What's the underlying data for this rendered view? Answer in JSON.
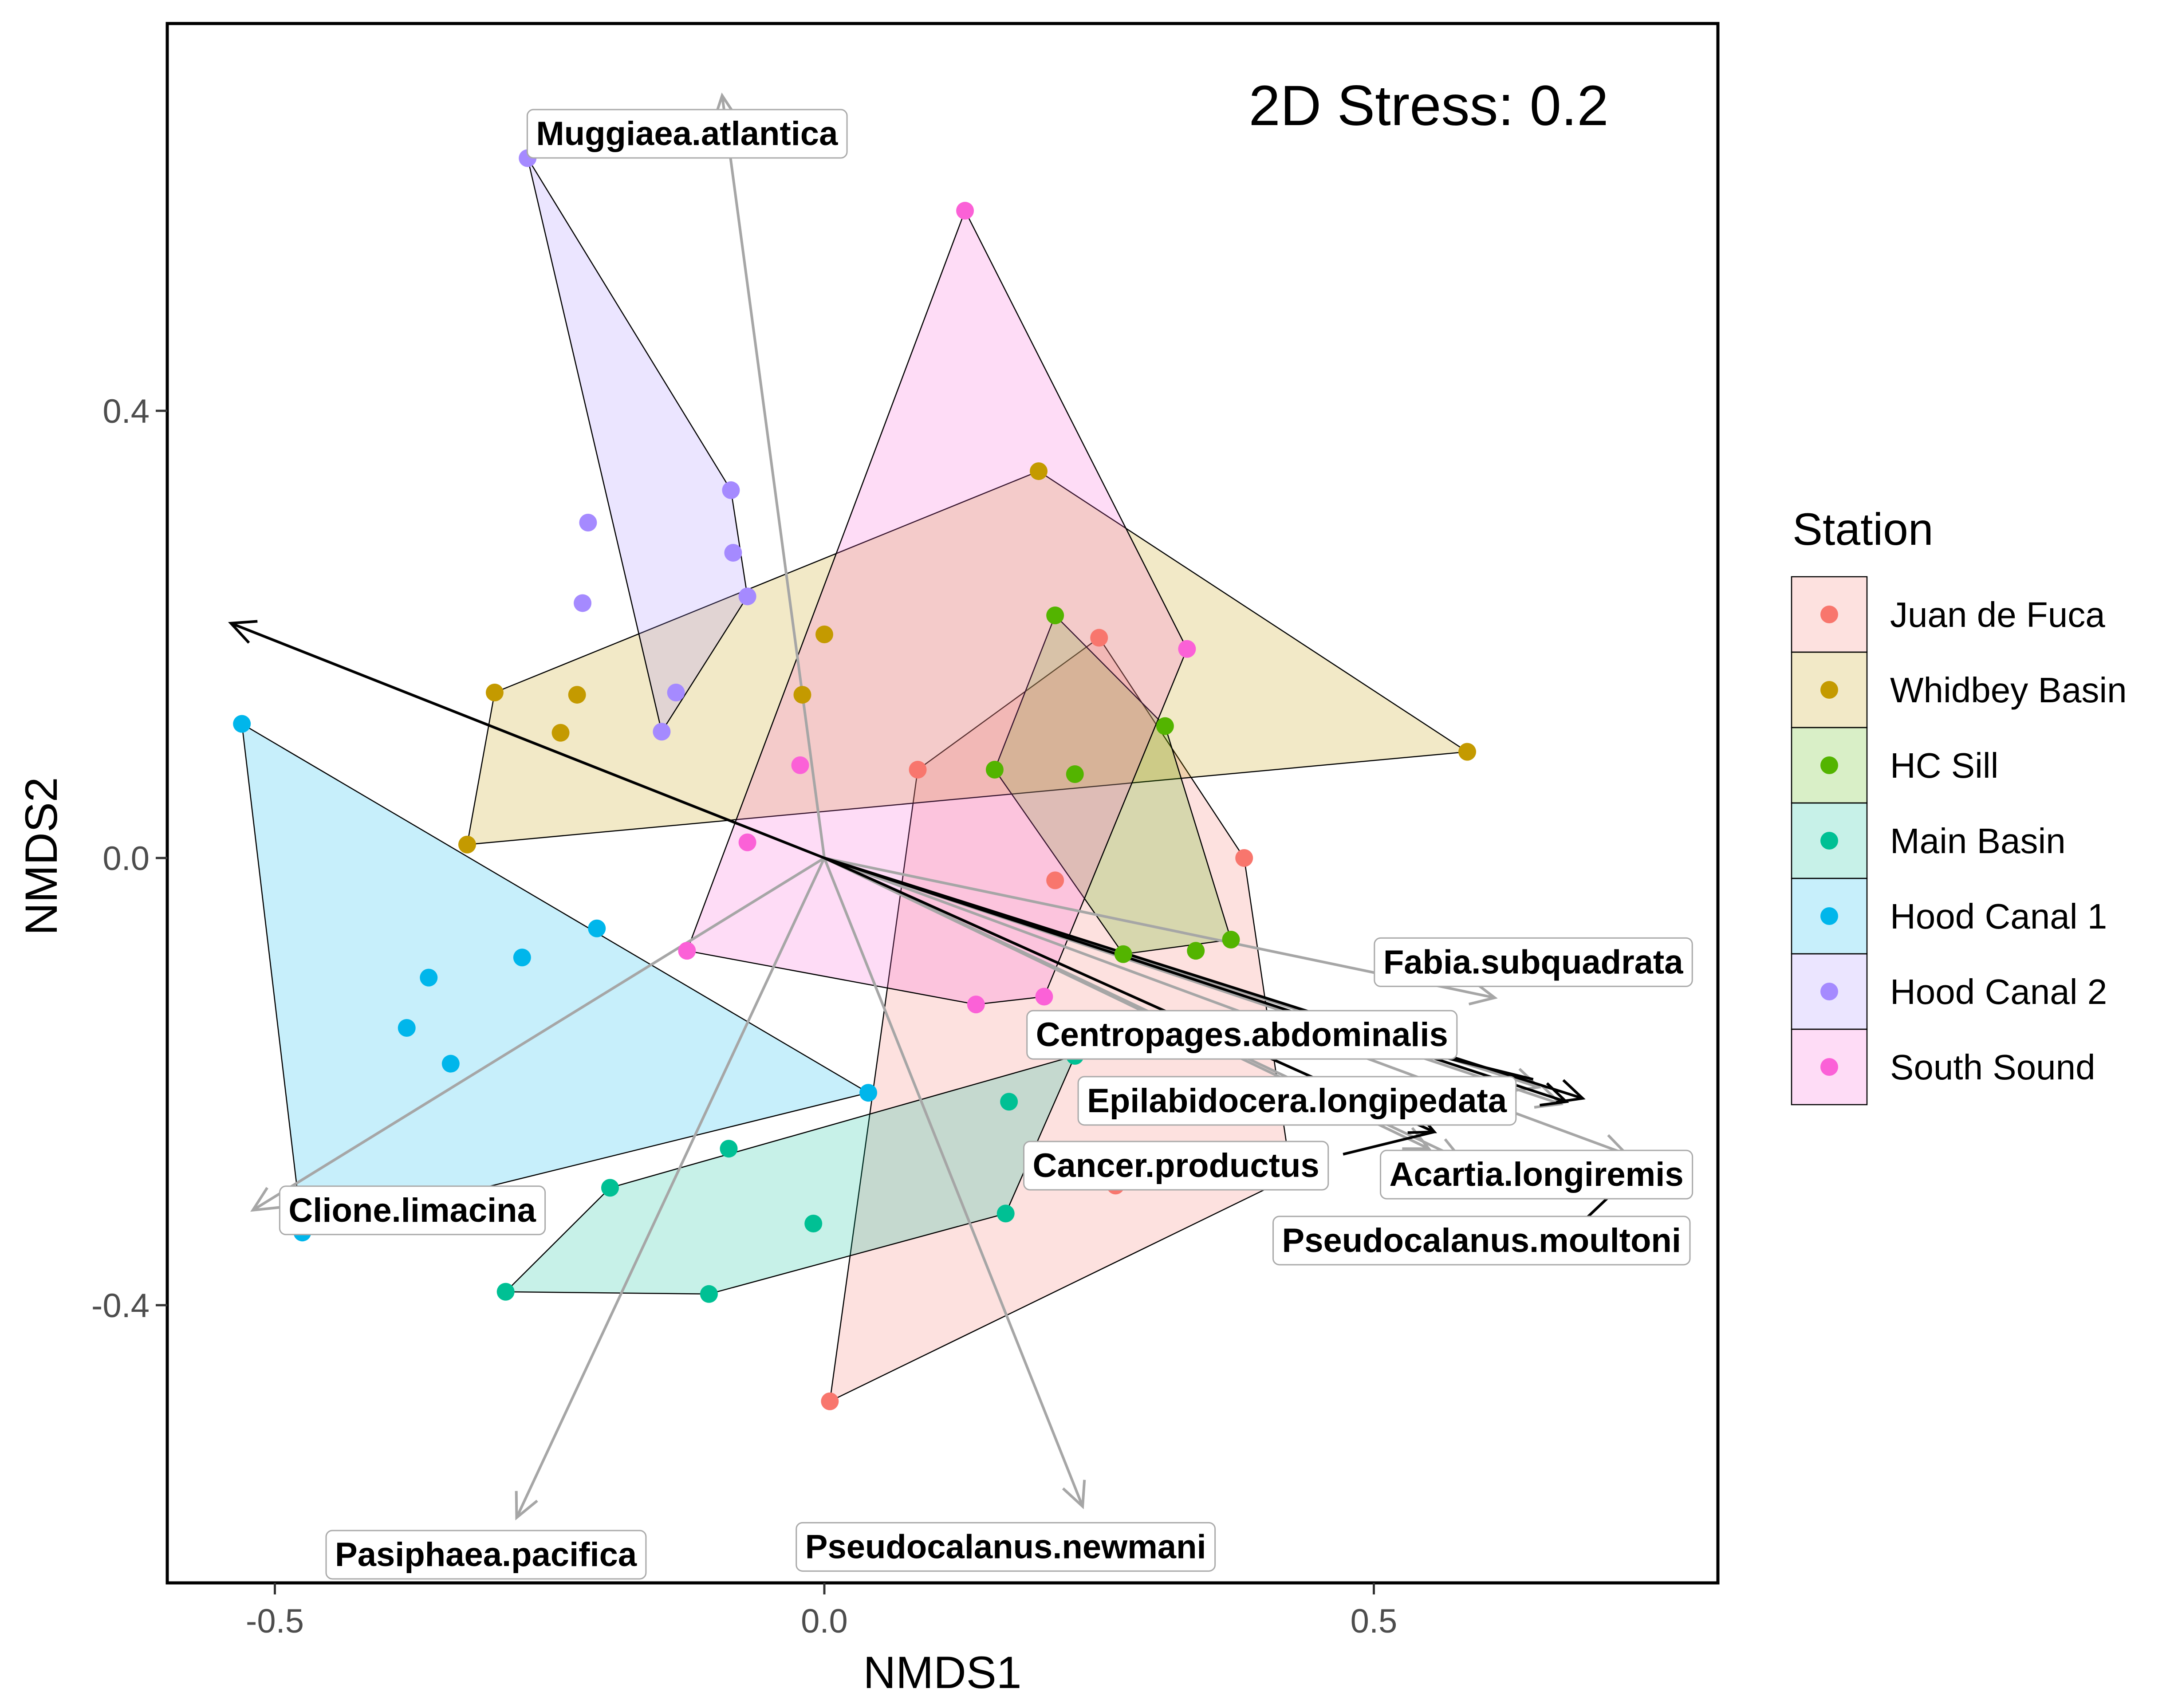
{
  "chart_data": {
    "type": "scatter",
    "title": "",
    "annotation": "2D Stress: 0.2",
    "xlabel": "NMDS1",
    "ylabel": "NMDS2",
    "xlim": [
      -0.6,
      0.81
    ],
    "ylim": [
      -0.65,
      0.74
    ],
    "xticks": [
      -0.5,
      0.0,
      0.5
    ],
    "yticks": [
      -0.4,
      0.0,
      0.4
    ],
    "xtick_labels": [
      "-0.5",
      "0.0",
      "0.5"
    ],
    "ytick_labels": [
      "-0.4",
      "0.0",
      "0.4"
    ],
    "grid": false,
    "legend": {
      "title": "Station",
      "position": "right"
    },
    "series": [
      {
        "name": "Juan de Fuca",
        "color": "#F8766D",
        "points": [
          [
            0.25,
            0.197
          ],
          [
            0.085,
            0.079
          ],
          [
            0.382,
            0.0
          ],
          [
            0.21,
            -0.02
          ],
          [
            0.265,
            -0.293
          ],
          [
            0.425,
            -0.285
          ],
          [
            0.005,
            -0.486
          ]
        ],
        "hull": [
          [
            0.25,
            0.197
          ],
          [
            0.382,
            0.0
          ],
          [
            0.425,
            -0.285
          ],
          [
            0.005,
            -0.486
          ],
          [
            0.085,
            0.079
          ]
        ]
      },
      {
        "name": "Whidbey Basin",
        "color": "#C49A00",
        "points": [
          [
            0.195,
            0.346
          ],
          [
            0.585,
            0.095
          ],
          [
            -0.325,
            0.012
          ],
          [
            -0.3,
            0.148
          ],
          [
            -0.225,
            0.146
          ],
          [
            -0.24,
            0.112
          ],
          [
            0.0,
            0.2
          ],
          [
            -0.02,
            0.146
          ]
        ],
        "hull": [
          [
            0.195,
            0.346
          ],
          [
            0.585,
            0.095
          ],
          [
            -0.325,
            0.012
          ],
          [
            -0.3,
            0.148
          ]
        ]
      },
      {
        "name": "HC Sill",
        "color": "#53B400",
        "points": [
          [
            0.21,
            0.217
          ],
          [
            0.31,
            0.118
          ],
          [
            0.155,
            0.079
          ],
          [
            0.228,
            0.075
          ],
          [
            0.37,
            -0.073
          ],
          [
            0.338,
            -0.083
          ],
          [
            0.272,
            -0.086
          ]
        ],
        "hull": [
          [
            0.21,
            0.217
          ],
          [
            0.31,
            0.118
          ],
          [
            0.37,
            -0.073
          ],
          [
            0.272,
            -0.086
          ],
          [
            0.155,
            0.079
          ]
        ]
      },
      {
        "name": "Main Basin",
        "color": "#00C094",
        "points": [
          [
            0.228,
            -0.177
          ],
          [
            0.168,
            -0.218
          ],
          [
            -0.087,
            -0.26
          ],
          [
            -0.195,
            -0.295
          ],
          [
            -0.01,
            -0.327
          ],
          [
            0.165,
            -0.318
          ],
          [
            -0.29,
            -0.388
          ],
          [
            -0.105,
            -0.39
          ]
        ],
        "hull": [
          [
            0.228,
            -0.177
          ],
          [
            0.165,
            -0.318
          ],
          [
            -0.105,
            -0.39
          ],
          [
            -0.29,
            -0.388
          ],
          [
            -0.195,
            -0.295
          ]
        ]
      },
      {
        "name": "Hood Canal 1",
        "color": "#00B6EB",
        "points": [
          [
            -0.53,
            0.12
          ],
          [
            -0.207,
            -0.063
          ],
          [
            -0.275,
            -0.089
          ],
          [
            -0.36,
            -0.107
          ],
          [
            -0.38,
            -0.152
          ],
          [
            -0.34,
            -0.184
          ],
          [
            0.04,
            -0.21
          ],
          [
            -0.475,
            -0.335
          ]
        ],
        "hull": [
          [
            -0.53,
            0.12
          ],
          [
            0.04,
            -0.21
          ],
          [
            -0.475,
            -0.335
          ]
        ]
      },
      {
        "name": "Hood Canal 2",
        "color": "#A58AFF",
        "points": [
          [
            -0.27,
            0.626
          ],
          [
            -0.085,
            0.329
          ],
          [
            -0.215,
            0.3
          ],
          [
            -0.083,
            0.273
          ],
          [
            -0.07,
            0.234
          ],
          [
            -0.22,
            0.228
          ],
          [
            -0.135,
            0.148
          ],
          [
            -0.148,
            0.113
          ]
        ],
        "hull": [
          [
            -0.27,
            0.626
          ],
          [
            -0.085,
            0.329
          ],
          [
            -0.07,
            0.234
          ],
          [
            -0.148,
            0.113
          ]
        ]
      },
      {
        "name": "South Sound",
        "color": "#FB61D7",
        "points": [
          [
            0.128,
            0.579
          ],
          [
            0.33,
            0.187
          ],
          [
            -0.022,
            0.083
          ],
          [
            -0.07,
            0.014
          ],
          [
            -0.125,
            -0.083
          ],
          [
            0.138,
            -0.131
          ],
          [
            0.2,
            -0.124
          ]
        ],
        "hull": [
          [
            0.128,
            0.579
          ],
          [
            0.33,
            0.187
          ],
          [
            0.2,
            -0.124
          ],
          [
            0.138,
            -0.131
          ],
          [
            -0.125,
            -0.083
          ]
        ]
      }
    ],
    "vectors": [
      {
        "name": "Muggiaea.atlantica",
        "tip": [
          -0.093,
          0.682
        ],
        "color": "#A6A6A6",
        "label_at": [
          -0.125,
          0.648
        ]
      },
      {
        "name": "Fabia.subquadrata",
        "tip": [
          0.61,
          -0.125
        ],
        "color": "#A6A6A6",
        "label_at": [
          0.645,
          -0.093
        ]
      },
      {
        "name": "Centropages.abdominalis",
        "tip": [
          0.65,
          -0.205
        ],
        "color": "#A6A6A6",
        "label_at": [
          0.38,
          -0.158
        ]
      },
      {
        "name": "Epilabidocera.longipedata",
        "tip": [
          0.67,
          -0.22
        ],
        "color": "#A6A6A6",
        "label_at": [
          0.43,
          -0.217
        ]
      },
      {
        "name": "Acartia.longiremis",
        "tip": [
          0.73,
          -0.265
        ],
        "color": "#A6A6A6",
        "label_at": [
          0.648,
          -0.283
        ]
      },
      {
        "name": "Cancer.productus",
        "tip": [
          0.55,
          -0.26
        ],
        "color": "#A6A6A6",
        "label_at": [
          0.32,
          -0.275
        ]
      },
      {
        "name": "Pseudocalanus.moultoni",
        "tip": [
          0.58,
          -0.27
        ],
        "color": "#A6A6A6",
        "label_at": [
          0.598,
          -0.342
        ]
      },
      {
        "name": "Clione.limacina",
        "tip": [
          -0.52,
          -0.315
        ],
        "color": "#A6A6A6",
        "label_at": [
          -0.375,
          -0.315
        ]
      },
      {
        "name": "Pasiphaea.pacifica",
        "tip": [
          -0.28,
          -0.59
        ],
        "color": "#A6A6A6",
        "label_at": [
          -0.308,
          -0.623
        ]
      },
      {
        "name": "Pseudocalanus.newmani",
        "tip": [
          0.235,
          -0.58
        ],
        "color": "#A6A6A6",
        "label_at": [
          0.165,
          -0.616
        ]
      },
      {
        "name": "",
        "tip": [
          -0.54,
          0.21
        ],
        "color": "#000000"
      },
      {
        "name": "",
        "tip": [
          0.555,
          -0.245
        ],
        "color": "#000000"
      },
      {
        "name": "",
        "tip": [
          0.675,
          -0.218
        ],
        "color": "#000000"
      },
      {
        "name": "",
        "tip": [
          0.69,
          -0.215
        ],
        "color": "#000000"
      }
    ],
    "label_connectors": [
      {
        "from": [
          0.468,
          -0.155
        ],
        "to": [
          0.645,
          -0.198
        ]
      },
      {
        "from": [
          0.472,
          -0.265
        ],
        "to": [
          0.555,
          -0.245
        ]
      },
      {
        "from": [
          0.715,
          -0.302
        ],
        "to": [
          0.685,
          -0.33
        ]
      }
    ]
  }
}
